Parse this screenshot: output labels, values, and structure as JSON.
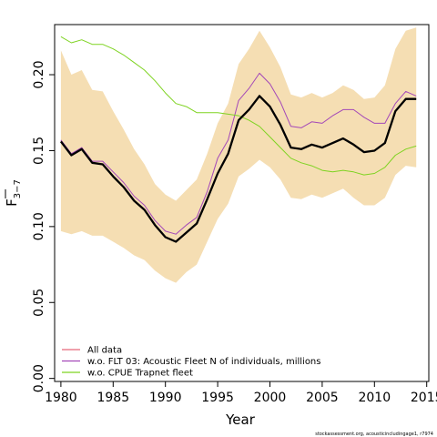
{
  "chart_data": {
    "type": "line",
    "xlabel": "Year",
    "ylabel": {
      "base": "F",
      "sub": "3−7"
    },
    "xlim": [
      1979.4,
      2015.2
    ],
    "ylim": [
      -0.002,
      0.233
    ],
    "xticks": [
      "1980",
      "1985",
      "1990",
      "1995",
      "2000",
      "2005",
      "2010",
      "2015"
    ],
    "yticks": [
      "0.00",
      "0.05",
      "0.10",
      "0.15",
      "0.20"
    ],
    "grid": false,
    "legend_position": "bottom-left",
    "x": [
      1980,
      1981,
      1982,
      1983,
      1984,
      1985,
      1986,
      1987,
      1988,
      1989,
      1990,
      1991,
      1992,
      1993,
      1994,
      1995,
      1996,
      1997,
      1998,
      1999,
      2000,
      2001,
      2002,
      2003,
      2004,
      2005,
      2006,
      2007,
      2008,
      2009,
      2010,
      2011,
      2012,
      2013,
      2014
    ],
    "band": {
      "color": "#f5deb3",
      "lower": [
        0.097,
        0.095,
        0.097,
        0.094,
        0.094,
        0.09,
        0.086,
        0.081,
        0.078,
        0.071,
        0.066,
        0.063,
        0.07,
        0.075,
        0.09,
        0.105,
        0.115,
        0.133,
        0.138,
        0.144,
        0.139,
        0.131,
        0.119,
        0.118,
        0.121,
        0.119,
        0.122,
        0.125,
        0.119,
        0.114,
        0.114,
        0.119,
        0.134,
        0.14,
        0.139
      ],
      "upper": [
        0.216,
        0.2,
        0.203,
        0.19,
        0.189,
        0.176,
        0.164,
        0.151,
        0.141,
        0.128,
        0.121,
        0.117,
        0.124,
        0.131,
        0.148,
        0.168,
        0.181,
        0.207,
        0.217,
        0.229,
        0.218,
        0.205,
        0.187,
        0.185,
        0.188,
        0.185,
        0.188,
        0.193,
        0.19,
        0.184,
        0.185,
        0.193,
        0.217,
        0.229,
        0.231
      ]
    },
    "series": [
      {
        "name": "",
        "role": "base",
        "color": "#000000",
        "width": 2.3,
        "values": [
          0.156,
          0.147,
          0.151,
          0.142,
          0.141,
          0.133,
          0.126,
          0.117,
          0.111,
          0.101,
          0.093,
          0.09,
          0.096,
          0.102,
          0.118,
          0.135,
          0.148,
          0.17,
          0.177,
          0.186,
          0.179,
          0.167,
          0.152,
          0.151,
          0.154,
          0.152,
          0.155,
          0.158,
          0.154,
          0.149,
          0.15,
          0.155,
          0.176,
          0.184,
          0.184
        ]
      },
      {
        "name": "All data",
        "color": "#e8677a",
        "width": 1,
        "values": [
          0.156,
          0.147,
          0.151,
          0.142,
          0.141,
          0.133,
          0.126,
          0.117,
          0.111,
          0.101,
          0.093,
          0.09,
          0.096,
          0.102,
          0.118,
          0.135,
          0.148,
          0.17,
          0.177,
          0.186,
          0.179,
          0.167,
          0.152,
          0.151,
          0.154,
          0.152,
          0.155,
          0.158,
          0.154,
          0.149,
          0.15,
          0.155,
          0.176,
          0.184,
          0.184
        ]
      },
      {
        "name": "w.o. FLT 03: Acoustic Fleet   N of individuals, millions",
        "color": "#a347b8",
        "width": 1,
        "values": [
          0.157,
          0.148,
          0.152,
          0.143,
          0.143,
          0.136,
          0.129,
          0.12,
          0.114,
          0.104,
          0.097,
          0.095,
          0.101,
          0.106,
          0.123,
          0.145,
          0.157,
          0.183,
          0.191,
          0.201,
          0.194,
          0.182,
          0.166,
          0.165,
          0.169,
          0.168,
          0.173,
          0.177,
          0.177,
          0.172,
          0.168,
          0.168,
          0.181,
          0.189,
          0.186
        ]
      },
      {
        "name": "w.o. CPUE Trapnet fleet",
        "color": "#7ed321",
        "width": 1,
        "values": [
          0.225,
          0.221,
          0.223,
          0.22,
          0.22,
          0.217,
          0.213,
          0.208,
          0.203,
          0.196,
          0.188,
          0.181,
          0.179,
          0.175,
          0.175,
          0.175,
          0.174,
          0.173,
          0.17,
          0.166,
          0.159,
          0.152,
          0.145,
          0.142,
          0.14,
          0.137,
          0.136,
          0.137,
          0.136,
          0.134,
          0.135,
          0.139,
          0.147,
          0.151,
          0.153
        ]
      }
    ]
  },
  "footer": "stockassessment.org, acousticincludingage1, r7974"
}
